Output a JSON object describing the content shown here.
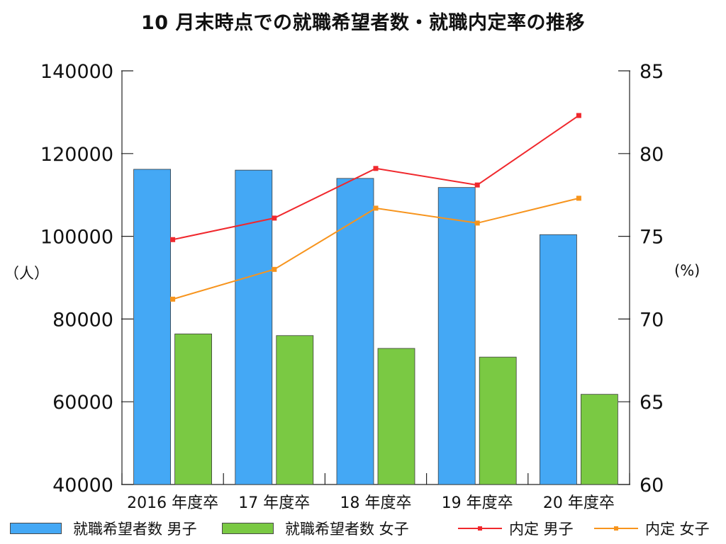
{
  "chart_data": {
    "type": "bar",
    "title": "10 月末時点での就職希望者数・就職内定率の推移",
    "categories": [
      "2016 年度卒",
      "17 年度卒",
      "18 年度卒",
      "19 年度卒",
      "20 年度卒"
    ],
    "series": [
      {
        "name": "就職希望者数 男子",
        "type": "bar",
        "axis": "left",
        "color": "#44a8f5",
        "values": [
          116200,
          116000,
          114000,
          111800,
          100400
        ]
      },
      {
        "name": "就職希望者数 女子",
        "type": "bar",
        "axis": "left",
        "color": "#7ac943",
        "values": [
          76400,
          76000,
          72900,
          70800,
          61800
        ]
      },
      {
        "name": "内定 男子",
        "type": "line",
        "axis": "right",
        "color": "#f0282d",
        "values": [
          74.8,
          76.1,
          79.1,
          78.1,
          82.3
        ]
      },
      {
        "name": "内定 女子",
        "type": "line",
        "axis": "right",
        "color": "#f7941d",
        "values": [
          71.2,
          73.0,
          76.7,
          75.8,
          77.3
        ]
      }
    ],
    "y_left": {
      "label": "（人）",
      "min": 40000,
      "max": 140000,
      "ticks": [
        "40000",
        "60000",
        "80000",
        "100000",
        "120000",
        "140000"
      ]
    },
    "y_right": {
      "label": "(%)",
      "min": 60,
      "max": 85,
      "ticks": [
        "60",
        "65",
        "70",
        "75",
        "80",
        "85"
      ]
    },
    "grid": false,
    "legend_position": "bottom"
  }
}
